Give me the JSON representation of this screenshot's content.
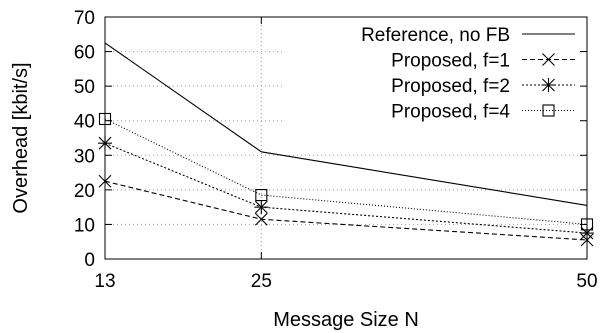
{
  "chart_data": {
    "type": "line",
    "title": "",
    "xlabel": "Message Size N",
    "ylabel": "Overhead [kbit/s]",
    "x": [
      13,
      25,
      50
    ],
    "xticks": [
      "13",
      "25",
      "50"
    ],
    "xlim": [
      13,
      50
    ],
    "ylim": [
      0,
      70
    ],
    "yticks": [
      "0",
      "10",
      "20",
      "30",
      "40",
      "50",
      "60",
      "70"
    ],
    "grid": true,
    "legend_position": "top-right",
    "series": [
      {
        "name": "Reference, no FB",
        "values": [
          62.5,
          31,
          15.5
        ],
        "marker": "none",
        "dash": "solid"
      },
      {
        "name": "Proposed, f=1",
        "values": [
          22.5,
          11.5,
          5.5
        ],
        "marker": "x",
        "dash": "dashed"
      },
      {
        "name": "Proposed, f=2",
        "values": [
          33.5,
          15,
          7.5
        ],
        "marker": "star",
        "dash": "dotted"
      },
      {
        "name": "Proposed, f=4",
        "values": [
          40.5,
          18.5,
          10
        ],
        "marker": "square",
        "dash": "finedot"
      }
    ]
  }
}
